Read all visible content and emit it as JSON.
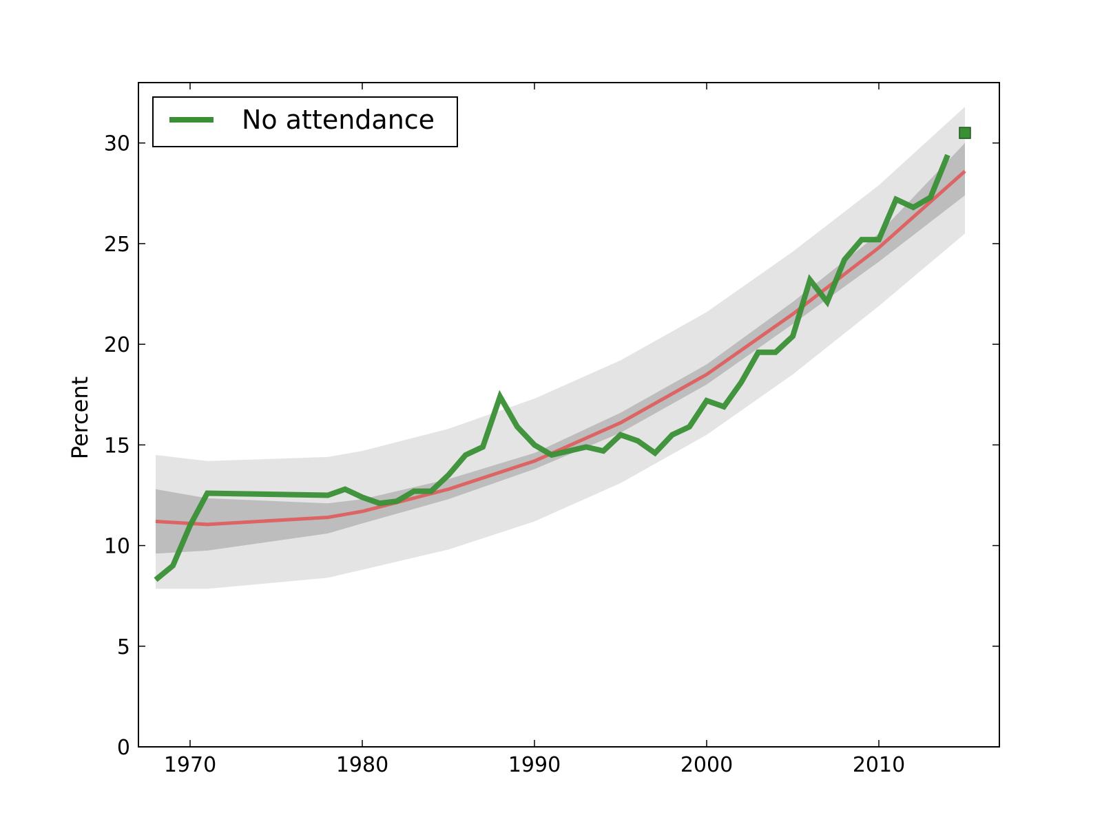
{
  "chart_data": {
    "type": "line",
    "title": "",
    "xlabel": "",
    "ylabel": "Percent",
    "xlim": [
      1967,
      2017
    ],
    "ylim": [
      0,
      33
    ],
    "x_ticks": [
      1970,
      1980,
      1990,
      2000,
      2010
    ],
    "y_ticks": [
      0,
      5,
      10,
      15,
      20,
      25,
      30
    ],
    "grid": false,
    "legend": {
      "position": "top-left",
      "entries": [
        "No attendance"
      ]
    },
    "colors": {
      "data": "#3a8f35",
      "fit": "#e05a5a",
      "inner_band": "#bdbdbd",
      "outer_band": "#e4e4e4"
    },
    "series": [
      {
        "name": "No attendance",
        "x": [
          1968,
          1969,
          1970,
          1971,
          1978,
          1979,
          1980,
          1981,
          1982,
          1983,
          1984,
          1985,
          1986,
          1987,
          1988,
          1989,
          1990,
          1991,
          1992,
          1993,
          1994,
          1995,
          1996,
          1997,
          1998,
          1999,
          2000,
          2001,
          2002,
          2003,
          2004,
          2005,
          2006,
          2007,
          2008,
          2009,
          2010,
          2011,
          2012,
          2013,
          2014
        ],
        "values": [
          8.3,
          9.0,
          11.0,
          12.6,
          12.5,
          12.8,
          12.4,
          12.1,
          12.2,
          12.7,
          12.7,
          13.5,
          14.5,
          14.9,
          17.4,
          15.9,
          15.0,
          14.5,
          14.7,
          14.9,
          14.7,
          15.5,
          15.2,
          14.6,
          15.5,
          15.9,
          17.2,
          16.9,
          18.1,
          19.6,
          19.6,
          20.4,
          23.2,
          22.1,
          24.2,
          25.2,
          25.2,
          27.2,
          26.8,
          27.3,
          29.4
        ]
      }
    ],
    "fit": {
      "x": [
        1968,
        1971,
        1978,
        1980,
        1985,
        1990,
        1995,
        2000,
        2005,
        2010,
        2015
      ],
      "values": [
        11.2,
        11.05,
        11.4,
        11.7,
        12.8,
        14.2,
        16.1,
        18.5,
        21.5,
        24.8,
        28.6
      ]
    },
    "inner_band": {
      "x": [
        1968,
        1971,
        1978,
        1980,
        1985,
        1990,
        1995,
        2000,
        2005,
        2010,
        2015
      ],
      "lower": [
        9.6,
        9.75,
        10.6,
        11.1,
        12.3,
        13.8,
        15.6,
        18.0,
        21.0,
        24.1,
        27.4
      ],
      "upper": [
        12.8,
        12.35,
        12.1,
        12.3,
        13.3,
        14.6,
        16.6,
        19.0,
        22.1,
        25.5,
        30.0
      ]
    },
    "outer_band": {
      "x": [
        1968,
        1971,
        1978,
        1980,
        1985,
        1990,
        1995,
        2000,
        2005,
        2010,
        2015
      ],
      "lower": [
        7.85,
        7.85,
        8.4,
        8.8,
        9.8,
        11.2,
        13.1,
        15.5,
        18.5,
        21.9,
        25.5
      ],
      "upper": [
        14.5,
        14.2,
        14.4,
        14.7,
        15.8,
        17.3,
        19.2,
        21.6,
        24.6,
        27.9,
        31.8
      ]
    },
    "prediction": {
      "x": 2015,
      "value": 30.5
    }
  }
}
